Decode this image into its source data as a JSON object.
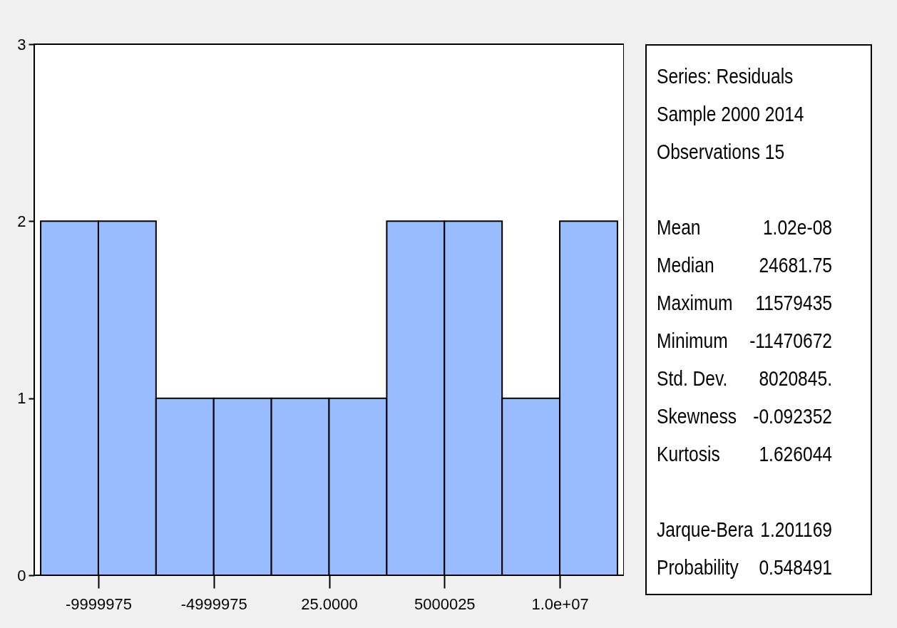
{
  "chart_data": {
    "type": "histogram",
    "bins": [
      -12499975,
      -9999975,
      -7499975,
      -4999975,
      -2499975,
      25,
      2500025,
      5000025,
      7500025,
      10000025,
      12500025
    ],
    "values": [
      2,
      2,
      1,
      1,
      1,
      1,
      2,
      2,
      1,
      2
    ],
    "color": "#99bbff",
    "xlim": [
      -12780000,
      12780000
    ],
    "xticks": [
      {
        "value": -9999975,
        "label": "-9999975"
      },
      {
        "value": -4999975,
        "label": "-4999975"
      },
      {
        "value": 25,
        "label": "25.0000"
      },
      {
        "value": 5000025,
        "label": "5000025"
      },
      {
        "value": 10000025,
        "label": "1.0e+07"
      }
    ],
    "ylim": [
      0,
      3
    ],
    "yticks": [
      0,
      1,
      2,
      3
    ],
    "grid": false,
    "annotations": [
      "Series: Residuals",
      "Sample 2000 2014",
      "Observations 15",
      "Mean 1.02e-08",
      "Median 24681.75",
      "Maximum 11579435",
      "Minimum -11470672",
      "Std. Dev. 8020845.",
      "Skewness -0.092352",
      "Kurtosis 1.626044",
      "Jarque-Bera 1.201169",
      "Probability 0.548491"
    ]
  }
}
